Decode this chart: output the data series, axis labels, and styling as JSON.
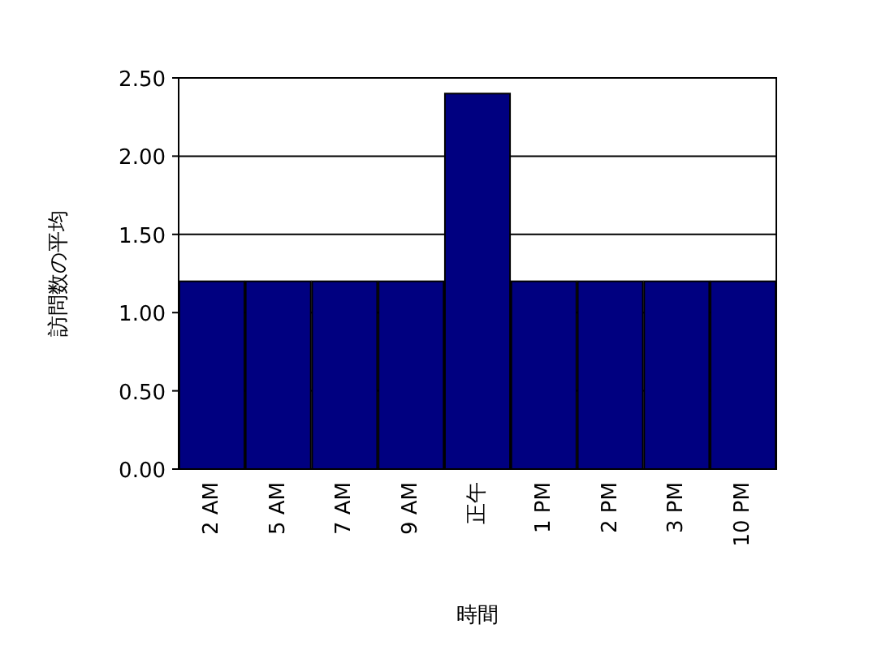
{
  "chart_data": {
    "type": "bar",
    "xlabel": "時間",
    "ylabel": "訪問数の平均",
    "categories": [
      "2 AM",
      "5 AM",
      "7 AM",
      "9 AM",
      "正午",
      "1 PM",
      "2 PM",
      "3 PM",
      "10 PM"
    ],
    "values": [
      1.2,
      1.2,
      1.2,
      1.2,
      2.4,
      1.2,
      1.2,
      1.2,
      1.2
    ],
    "color": "#000080",
    "ylim": [
      0,
      2.5
    ],
    "yticks": [
      {
        "value": 0,
        "label": "0.00"
      },
      {
        "value": 0.5,
        "label": "0.50"
      },
      {
        "value": 1,
        "label": "1.00"
      },
      {
        "value": 1.5,
        "label": "1.50"
      },
      {
        "value": 2,
        "label": "2.00"
      },
      {
        "value": 2.5,
        "label": "2.50"
      }
    ],
    "grid": "y"
  }
}
